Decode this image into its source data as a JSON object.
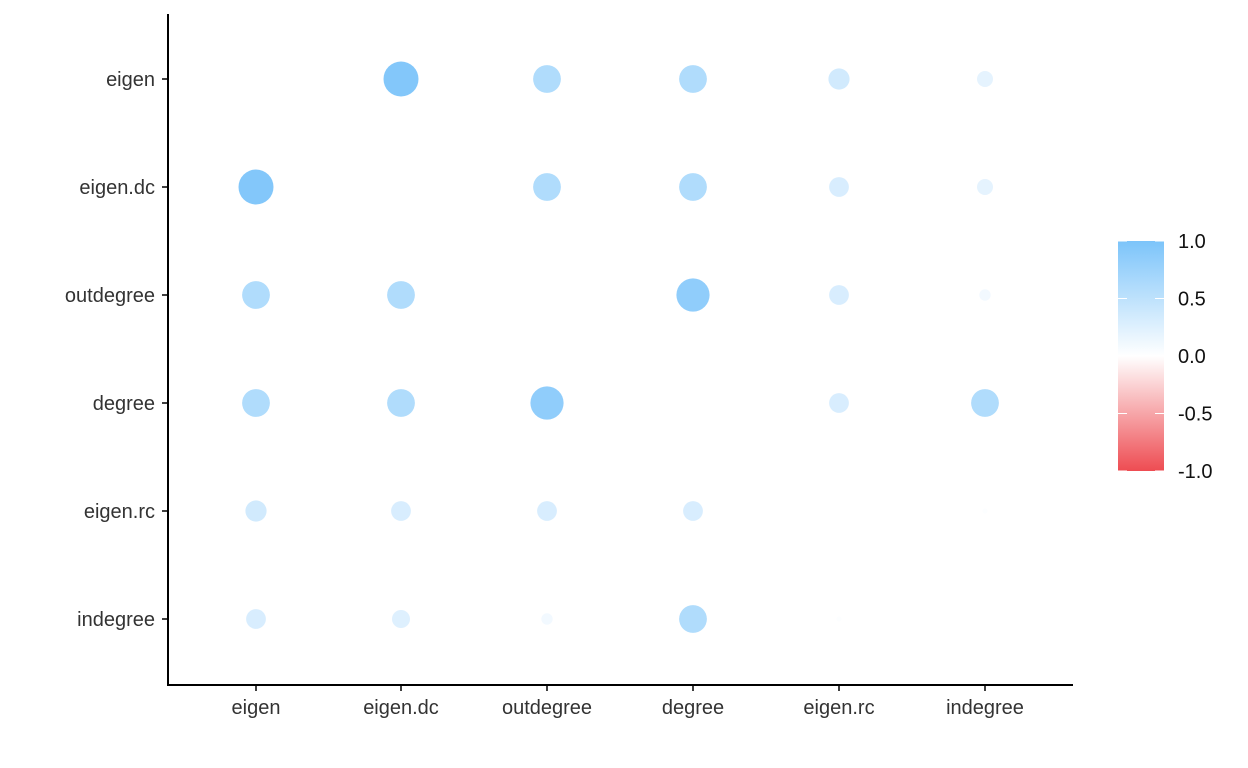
{
  "chart_data": {
    "type": "scatter",
    "title": "",
    "xlabel": "",
    "ylabel": "",
    "categories_x": [
      "eigen",
      "eigen.dc",
      "outdegree",
      "degree",
      "eigen.rc",
      "indegree"
    ],
    "categories_y": [
      "eigen",
      "eigen.dc",
      "outdegree",
      "degree",
      "eigen.rc",
      "indegree"
    ],
    "matrix": [
      [
        null,
        0.95,
        0.6,
        0.6,
        0.35,
        0.2
      ],
      [
        0.95,
        null,
        0.6,
        0.6,
        0.3,
        0.2
      ],
      [
        0.6,
        0.6,
        null,
        0.85,
        0.3,
        0.1
      ],
      [
        0.6,
        0.6,
        0.85,
        null,
        0.3,
        0.6
      ],
      [
        0.35,
        0.3,
        0.3,
        0.3,
        null,
        0.02
      ],
      [
        0.3,
        0.25,
        0.1,
        0.6,
        0.02,
        null
      ]
    ],
    "color_scale": {
      "range": [
        -1.0,
        1.0
      ],
      "ticks": [
        "1.0",
        "0.5",
        "0.0",
        "-0.5",
        "-1.0"
      ],
      "tick_values": [
        1.0,
        0.5,
        0.0,
        -0.5,
        -1.0
      ],
      "colors": {
        "low": "#ee4c52",
        "mid": "#ffffff",
        "high": "#7cc4fa"
      }
    },
    "legend_position": "right",
    "grid": false
  }
}
